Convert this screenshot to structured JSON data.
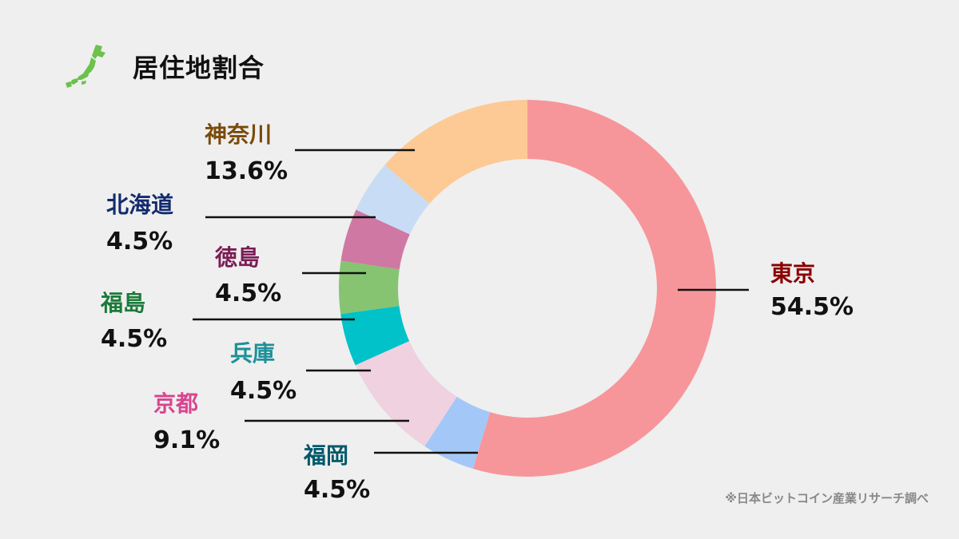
{
  "header": {
    "title": "居住地割合",
    "icon": "japan-map-icon",
    "icon_color": "#6cc24a"
  },
  "source_note": "※日本ビットコイン産業リサーチ調べ",
  "chart_data": {
    "type": "pie",
    "variant": "donut",
    "title": "居住地割合",
    "unit": "%",
    "start": "top, clockwise",
    "slices": [
      {
        "label": "東京",
        "value": 54.5,
        "value_label": "54.5%",
        "color": "#f7969a",
        "label_color": "#8b0000"
      },
      {
        "label": "福岡",
        "value": 4.5,
        "value_label": "4.5%",
        "color": "#a3c8f7",
        "label_color": "#00596b"
      },
      {
        "label": "京都",
        "value": 9.1,
        "value_label": "9.1%",
        "color": "#f0d1e0",
        "label_color": "#d9458f"
      },
      {
        "label": "兵庫",
        "value": 4.5,
        "value_label": "4.5%",
        "color": "#00c2c8",
        "label_color": "#1d8f99"
      },
      {
        "label": "福島",
        "value": 4.5,
        "value_label": "4.5%",
        "color": "#86c472",
        "label_color": "#1b7a3a"
      },
      {
        "label": "徳島",
        "value": 4.5,
        "value_label": "4.5%",
        "color": "#cf78a3",
        "label_color": "#7a1d55"
      },
      {
        "label": "北海道",
        "value": 4.5,
        "value_label": "4.5%",
        "color": "#c8dcf5",
        "label_color": "#132b6e"
      },
      {
        "label": "神奈川",
        "value": 13.6,
        "value_label": "13.6%",
        "color": "#fdc994",
        "label_color": "#7a4a0b"
      }
    ]
  }
}
